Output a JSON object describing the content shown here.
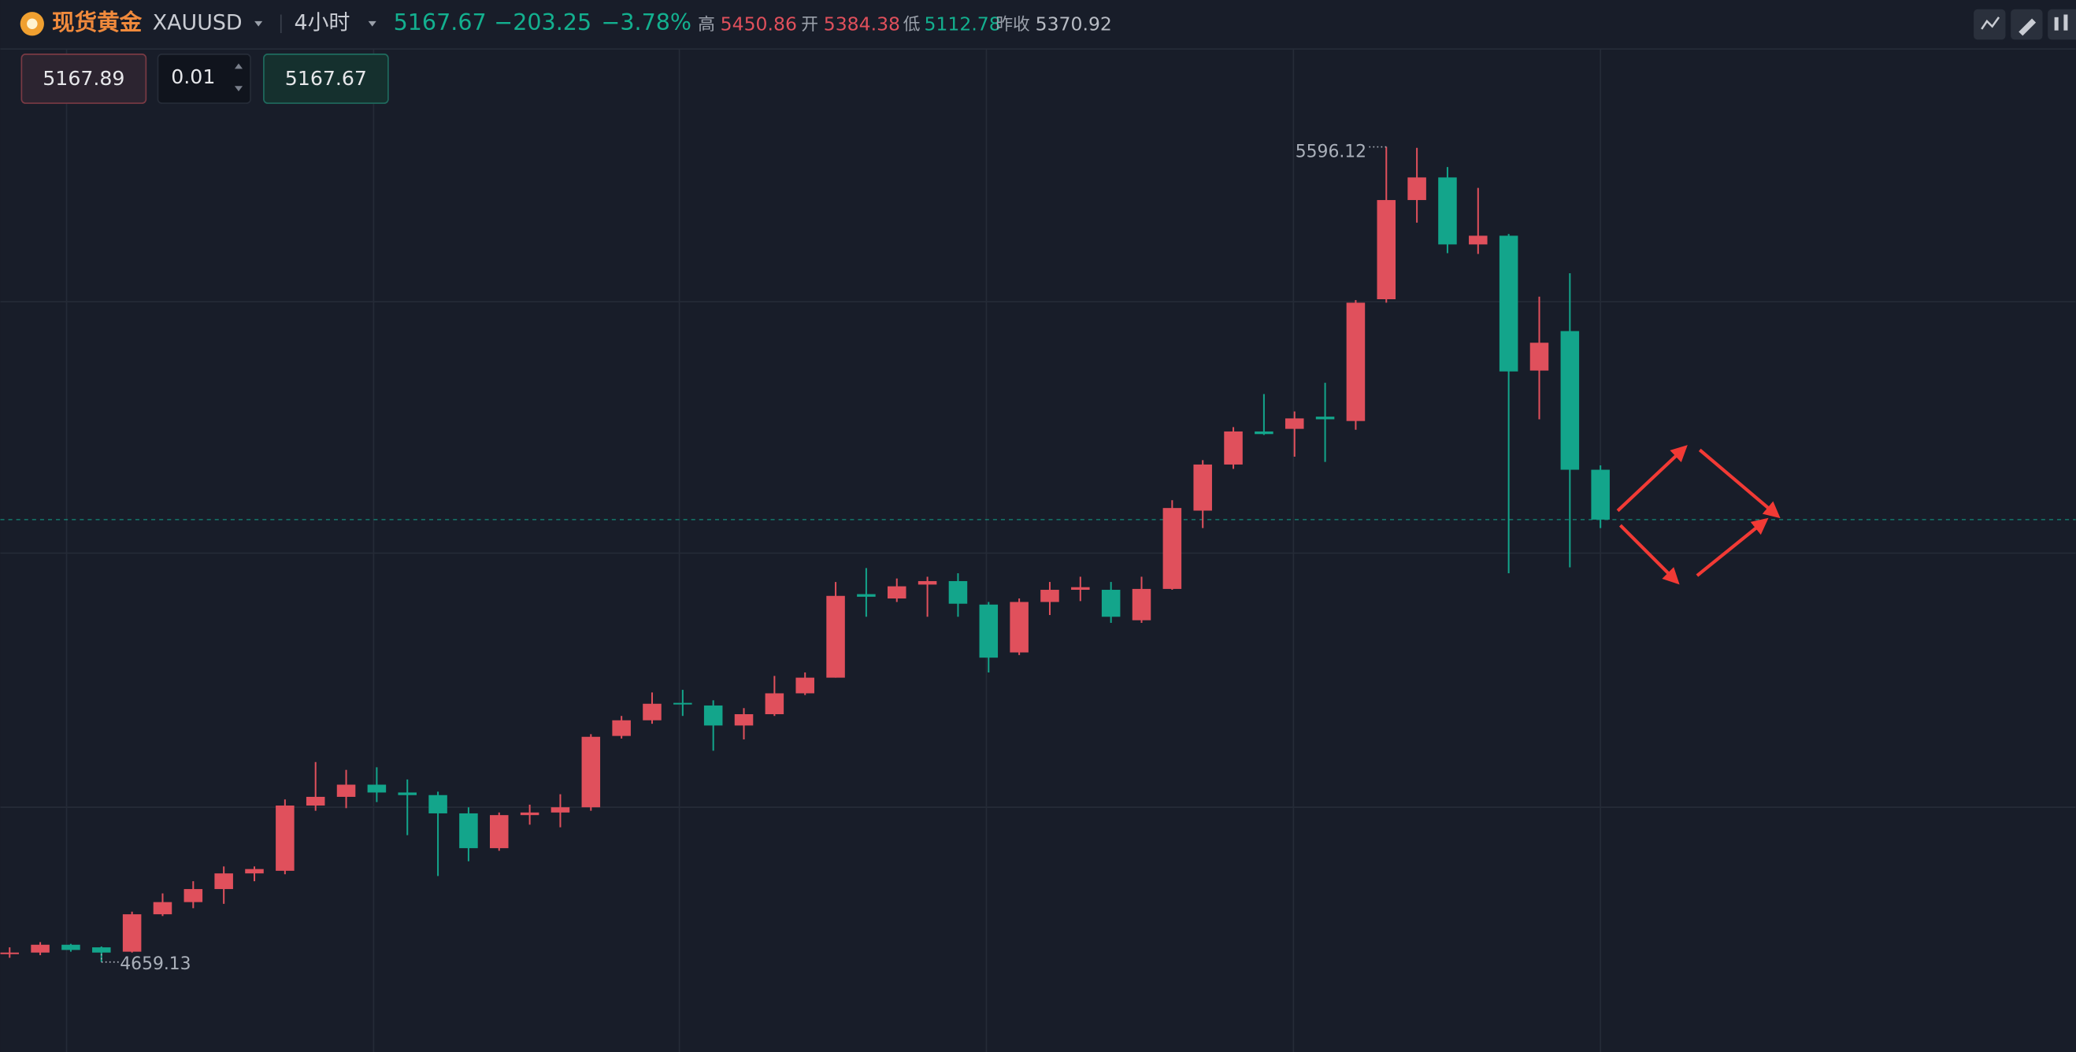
{
  "header": {
    "name": "现货黄金",
    "symbol": "XAUUSD",
    "interval": "4小时",
    "price": "5167.67",
    "change": "−203.25",
    "change_pct": "−3.78%",
    "high_label": "高",
    "high": "5450.86",
    "open_label": "开",
    "open": "5384.38",
    "low_label": "低",
    "low": "5112.78",
    "prev_close_label": "昨收",
    "prev_close": "5370.92"
  },
  "order": {
    "sell": "5167.89",
    "quantity": "0.01",
    "buy": "5167.67"
  },
  "chart_data": {
    "type": "candlestick",
    "up_color": "#e0505c",
    "down_color": "#13a58b",
    "open": [
      4670,
      4670,
      4679,
      4676,
      4671,
      4714,
      4728,
      4743,
      4761,
      4764,
      4839,
      4849,
      4863,
      4854,
      4851,
      4830,
      4790,
      4828,
      4831,
      4837,
      4919,
      4937,
      4957,
      4954,
      4931,
      4944,
      4968,
      4986,
      5082,
      5077,
      5093,
      5097,
      5070,
      5015,
      5073,
      5087,
      5087,
      5052,
      5088,
      5178,
      5231,
      5269,
      5272,
      5286,
      5281,
      5421,
      5535,
      5561,
      5484,
      5494,
      5339,
      5384.38,
      5225
    ],
    "high": [
      4676,
      4682,
      4680,
      4677,
      4717,
      4738,
      4752,
      4769,
      4769,
      4846,
      4889,
      4880,
      4883,
      4869,
      4855,
      4837,
      4831,
      4840,
      4852,
      4921,
      4942,
      4969,
      4972,
      4960,
      4951,
      4988,
      4992,
      5096,
      5112,
      5100,
      5102,
      5106,
      5073,
      5077,
      5096,
      5102,
      5096,
      5102,
      5190,
      5236,
      5274,
      5312,
      5292,
      5325,
      5420,
      5596.12,
      5595,
      5573,
      5549,
      5496,
      5424,
      5450.86,
      5230
    ],
    "low": [
      4664,
      4667,
      4671,
      4659.13,
      4670,
      4712,
      4721,
      4726,
      4752,
      4760,
      4833,
      4836,
      4843,
      4805,
      4758,
      4775,
      4787,
      4817,
      4814,
      4833,
      4916,
      4933,
      4942,
      4902,
      4915,
      4942,
      4966,
      4986,
      5056,
      5073,
      5056,
      5056,
      4992,
      5012,
      5058,
      5074,
      5049,
      5049,
      5087,
      5158,
      5226,
      5265,
      5240,
      5234,
      5271,
      5417,
      5509,
      5474,
      5473,
      5106,
      5283,
      5112.78,
      5158
    ],
    "close": [
      4670,
      4679,
      4673,
      4670,
      4714,
      4728,
      4743,
      4761,
      4766,
      4839,
      4849,
      4863,
      4854,
      4851,
      4830,
      4790,
      4828,
      4831,
      4837,
      4918,
      4937,
      4956,
      4956,
      4931,
      4944,
      4968,
      4986,
      5080,
      5079,
      5091,
      5097,
      5071,
      5009,
      5073,
      5087,
      5090,
      5056,
      5088,
      5181,
      5231,
      5269,
      5266,
      5284,
      5283,
      5417,
      5535,
      5561,
      5484,
      5494,
      5338,
      5371,
      5225,
      5167.67
    ]
  }
}
